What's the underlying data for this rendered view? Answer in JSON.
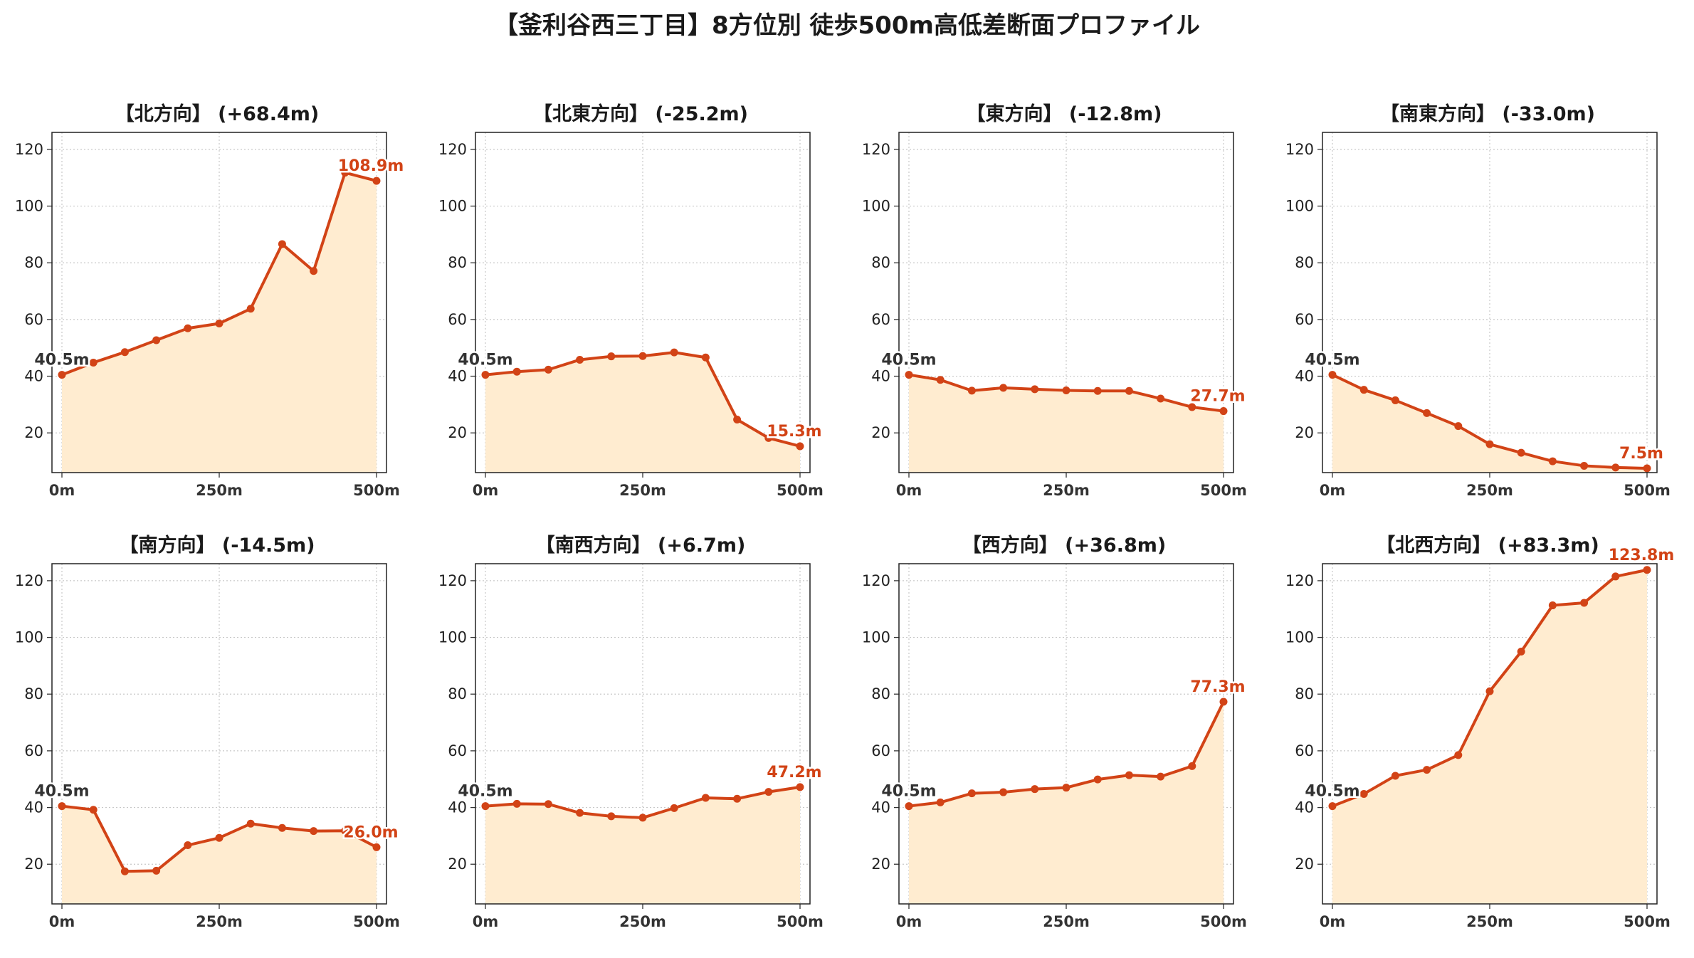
{
  "title": "【釜利谷西三丁目】8方位別 徒歩500m高低差断面プロファイル",
  "colors": {
    "line": "#d24316",
    "fill": "#ffecd0",
    "grid": "#c8c8c8",
    "start_label": "#333333",
    "end_label": "#d24316"
  },
  "chart_data": [
    {
      "type": "area",
      "title": "【北方向】 (+68.4m)",
      "x": [
        0,
        50,
        100,
        150,
        200,
        250,
        300,
        350,
        400,
        450,
        500
      ],
      "y": [
        40.5,
        44.8,
        48.5,
        52.7,
        56.9,
        58.6,
        63.8,
        86.6,
        77.1,
        111.8,
        108.9
      ],
      "start_label": "40.5m",
      "end_label": "108.9m",
      "xticks": [
        "0m",
        "250m",
        "500m"
      ],
      "yticks": [
        20,
        40,
        60,
        80,
        100,
        120
      ],
      "xlim": [
        0,
        500
      ],
      "ylim": [
        6,
        126
      ],
      "grid": true
    },
    {
      "type": "area",
      "title": "【北東方向】 (-25.2m)",
      "x": [
        0,
        50,
        100,
        150,
        200,
        250,
        300,
        350,
        400,
        450,
        500
      ],
      "y": [
        40.5,
        41.6,
        42.3,
        45.8,
        47.0,
        47.1,
        48.4,
        46.6,
        24.7,
        18.2,
        15.3
      ],
      "start_label": "40.5m",
      "end_label": "15.3m",
      "xticks": [
        "0m",
        "250m",
        "500m"
      ],
      "yticks": [
        20,
        40,
        60,
        80,
        100,
        120
      ],
      "xlim": [
        0,
        500
      ],
      "ylim": [
        6,
        126
      ],
      "grid": true
    },
    {
      "type": "area",
      "title": "【東方向】 (-12.8m)",
      "x": [
        0,
        50,
        100,
        150,
        200,
        250,
        300,
        350,
        400,
        450,
        500
      ],
      "y": [
        40.5,
        38.7,
        34.9,
        35.9,
        35.4,
        35.0,
        34.8,
        34.8,
        32.1,
        29.1,
        27.7
      ],
      "start_label": "40.5m",
      "end_label": "27.7m",
      "xticks": [
        "0m",
        "250m",
        "500m"
      ],
      "yticks": [
        20,
        40,
        60,
        80,
        100,
        120
      ],
      "xlim": [
        0,
        500
      ],
      "ylim": [
        6,
        126
      ],
      "grid": true
    },
    {
      "type": "area",
      "title": "【南東方向】 (-33.0m)",
      "x": [
        0,
        50,
        100,
        150,
        200,
        250,
        300,
        350,
        400,
        450,
        500
      ],
      "y": [
        40.5,
        35.2,
        31.5,
        27.0,
        22.4,
        16.0,
        13.0,
        10.0,
        8.4,
        7.8,
        7.5
      ],
      "start_label": "40.5m",
      "end_label": "7.5m",
      "xticks": [
        "0m",
        "250m",
        "500m"
      ],
      "yticks": [
        20,
        40,
        60,
        80,
        100,
        120
      ],
      "xlim": [
        0,
        500
      ],
      "ylim": [
        6,
        126
      ],
      "grid": true
    },
    {
      "type": "area",
      "title": "【南方向】 (-14.5m)",
      "x": [
        0,
        50,
        100,
        150,
        200,
        250,
        300,
        350,
        400,
        450,
        500
      ],
      "y": [
        40.5,
        39.2,
        17.5,
        17.7,
        26.7,
        29.3,
        34.3,
        32.8,
        31.7,
        31.8,
        26.0
      ],
      "start_label": "40.5m",
      "end_label": "26.0m",
      "xticks": [
        "0m",
        "250m",
        "500m"
      ],
      "yticks": [
        20,
        40,
        60,
        80,
        100,
        120
      ],
      "xlim": [
        0,
        500
      ],
      "ylim": [
        6,
        126
      ],
      "grid": true
    },
    {
      "type": "area",
      "title": "【南西方向】 (+6.7m)",
      "x": [
        0,
        50,
        100,
        150,
        200,
        250,
        300,
        350,
        400,
        450,
        500
      ],
      "y": [
        40.5,
        41.3,
        41.2,
        38.1,
        36.9,
        36.4,
        39.8,
        43.4,
        43.1,
        45.5,
        47.2
      ],
      "start_label": "40.5m",
      "end_label": "47.2m",
      "xticks": [
        "0m",
        "250m",
        "500m"
      ],
      "yticks": [
        20,
        40,
        60,
        80,
        100,
        120
      ],
      "xlim": [
        0,
        500
      ],
      "ylim": [
        6,
        126
      ],
      "grid": true
    },
    {
      "type": "area",
      "title": "【西方向】 (+36.8m)",
      "x": [
        0,
        50,
        100,
        150,
        200,
        250,
        300,
        350,
        400,
        450,
        500
      ],
      "y": [
        40.5,
        41.8,
        45.0,
        45.4,
        46.5,
        47.0,
        49.9,
        51.4,
        50.9,
        54.6,
        77.3
      ],
      "start_label": "40.5m",
      "end_label": "77.3m",
      "xticks": [
        "0m",
        "250m",
        "500m"
      ],
      "yticks": [
        20,
        40,
        60,
        80,
        100,
        120
      ],
      "xlim": [
        0,
        500
      ],
      "ylim": [
        6,
        126
      ],
      "grid": true
    },
    {
      "type": "area",
      "title": "【北西方向】 (+83.3m)",
      "x": [
        0,
        50,
        100,
        150,
        200,
        250,
        300,
        350,
        400,
        450,
        500
      ],
      "y": [
        40.5,
        44.8,
        51.2,
        53.3,
        58.5,
        81.0,
        95.0,
        111.3,
        112.2,
        121.5,
        123.8
      ],
      "start_label": "40.5m",
      "end_label": "123.8m",
      "xticks": [
        "0m",
        "250m",
        "500m"
      ],
      "yticks": [
        20,
        40,
        60,
        80,
        100,
        120
      ],
      "xlim": [
        0,
        500
      ],
      "ylim": [
        6,
        126
      ],
      "grid": true
    }
  ]
}
